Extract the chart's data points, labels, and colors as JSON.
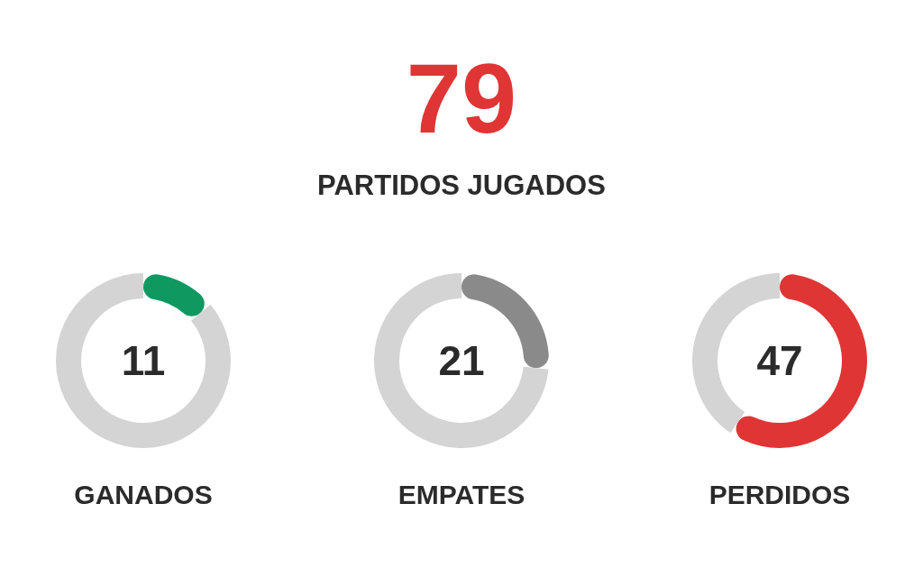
{
  "chart_data": [
    {
      "type": "other",
      "title": "79",
      "subtitle": "PARTIDOS JUGADOS"
    },
    {
      "type": "donut",
      "title": "GANADOS",
      "categories": [
        null,
        null
      ],
      "values": [
        11,
        68
      ],
      "colors": [
        "#0f9960",
        "#d4d4d4"
      ],
      "value_labels": [
        "11",
        null
      ]
    },
    {
      "type": "donut",
      "title": "EMPATES",
      "categories": [
        null,
        null
      ],
      "values": [
        21,
        58
      ],
      "colors": [
        "#8a8a8a",
        "#d4d4d4"
      ],
      "value_labels": [
        "21",
        null
      ]
    },
    {
      "type": "donut",
      "title": "PERDIDOS",
      "categories": [
        null,
        null
      ],
      "values": [
        47,
        32
      ],
      "colors": [
        "#e03535",
        "#d4d4d4"
      ],
      "value_labels": [
        "47",
        null
      ]
    }
  ]
}
